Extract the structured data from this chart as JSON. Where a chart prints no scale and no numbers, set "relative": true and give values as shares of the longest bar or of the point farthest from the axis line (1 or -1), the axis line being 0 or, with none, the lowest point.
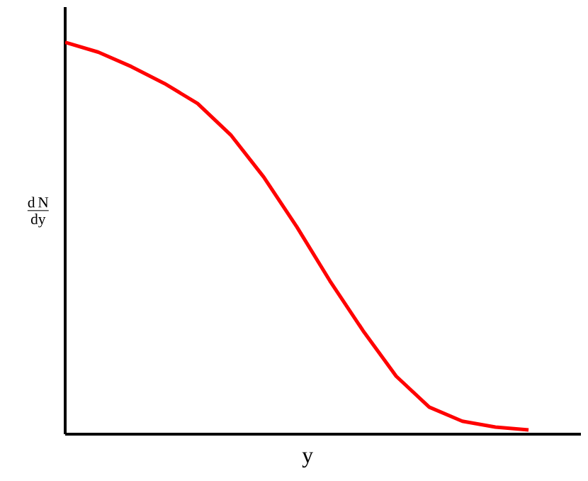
{
  "chart_data": {
    "type": "line",
    "relative": true,
    "xlabel": "y",
    "ylabel": "\\frac{\\mathrm{d\\,N}}{\\mathrm{dy}}",
    "categories": [
      null,
      null,
      null,
      null,
      null,
      null,
      null,
      null,
      null,
      null,
      null,
      null,
      null,
      null,
      null
    ],
    "series": [
      {
        "color": "#ff0000",
        "values": [
          1,
          0.975,
          0.938,
          0.895,
          0.844,
          0.764,
          0.656,
          0.529,
          0.391,
          0.264,
          0.148,
          0.069,
          0.033,
          0.018,
          0.011
        ]
      }
    ],
    "marker": "none",
    "line_style": "solid"
  }
}
